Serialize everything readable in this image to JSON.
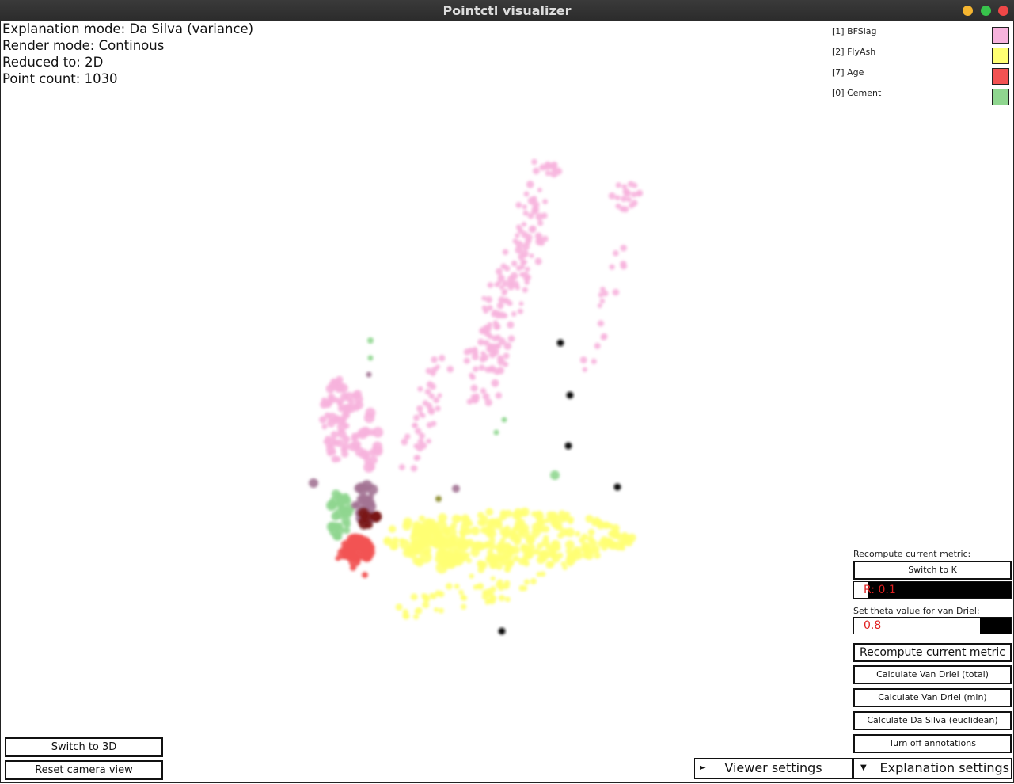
{
  "window": {
    "title": "Pointctl visualizer"
  },
  "info": {
    "explanation_mode": "Explanation mode: Da Silva (variance)",
    "render_mode": "Render mode: Continous",
    "reduced_to": "Reduced to: 2D",
    "point_count": "Point count: 1030"
  },
  "legend": [
    {
      "label": "[1] BFSlag",
      "color": "#f7b3dd"
    },
    {
      "label": "[2] FlyAsh",
      "color": "#ffff73"
    },
    {
      "label": "[7] Age",
      "color": "#f25252"
    },
    {
      "label": "[0] Cement",
      "color": "#8fd68f"
    }
  ],
  "panel": {
    "recompute_label": "Recompute current metric:",
    "switch_k_button": "Switch to K",
    "r_field_value": "R: 0.1",
    "theta_label": "Set theta value for van Driel:",
    "theta_field_value": "0.8",
    "recompute_button": "Recompute current metric",
    "van_driel_total_button": "Calculate Van Driel (total)",
    "van_driel_min_button": "Calculate Van Driel (min)",
    "da_silva_euclidean_button": "Calculate Da Silva (euclidean)",
    "annotations_button": "Turn off annotations"
  },
  "bottom_left": {
    "switch_3d_button": "Switch to 3D",
    "reset_camera_button": "Reset camera view"
  },
  "bottom_bar": {
    "viewer_settings": "Viewer settings",
    "explanation_settings": "Explanation settings"
  },
  "colors": {
    "pink": "#f7b3dd",
    "yellow": "#ffff73",
    "red": "#f25252",
    "green": "#8fd68f",
    "purple": "#a37394",
    "darkred": "#7a1a1a",
    "olive": "#8a8a2a",
    "black": "#111111"
  }
}
